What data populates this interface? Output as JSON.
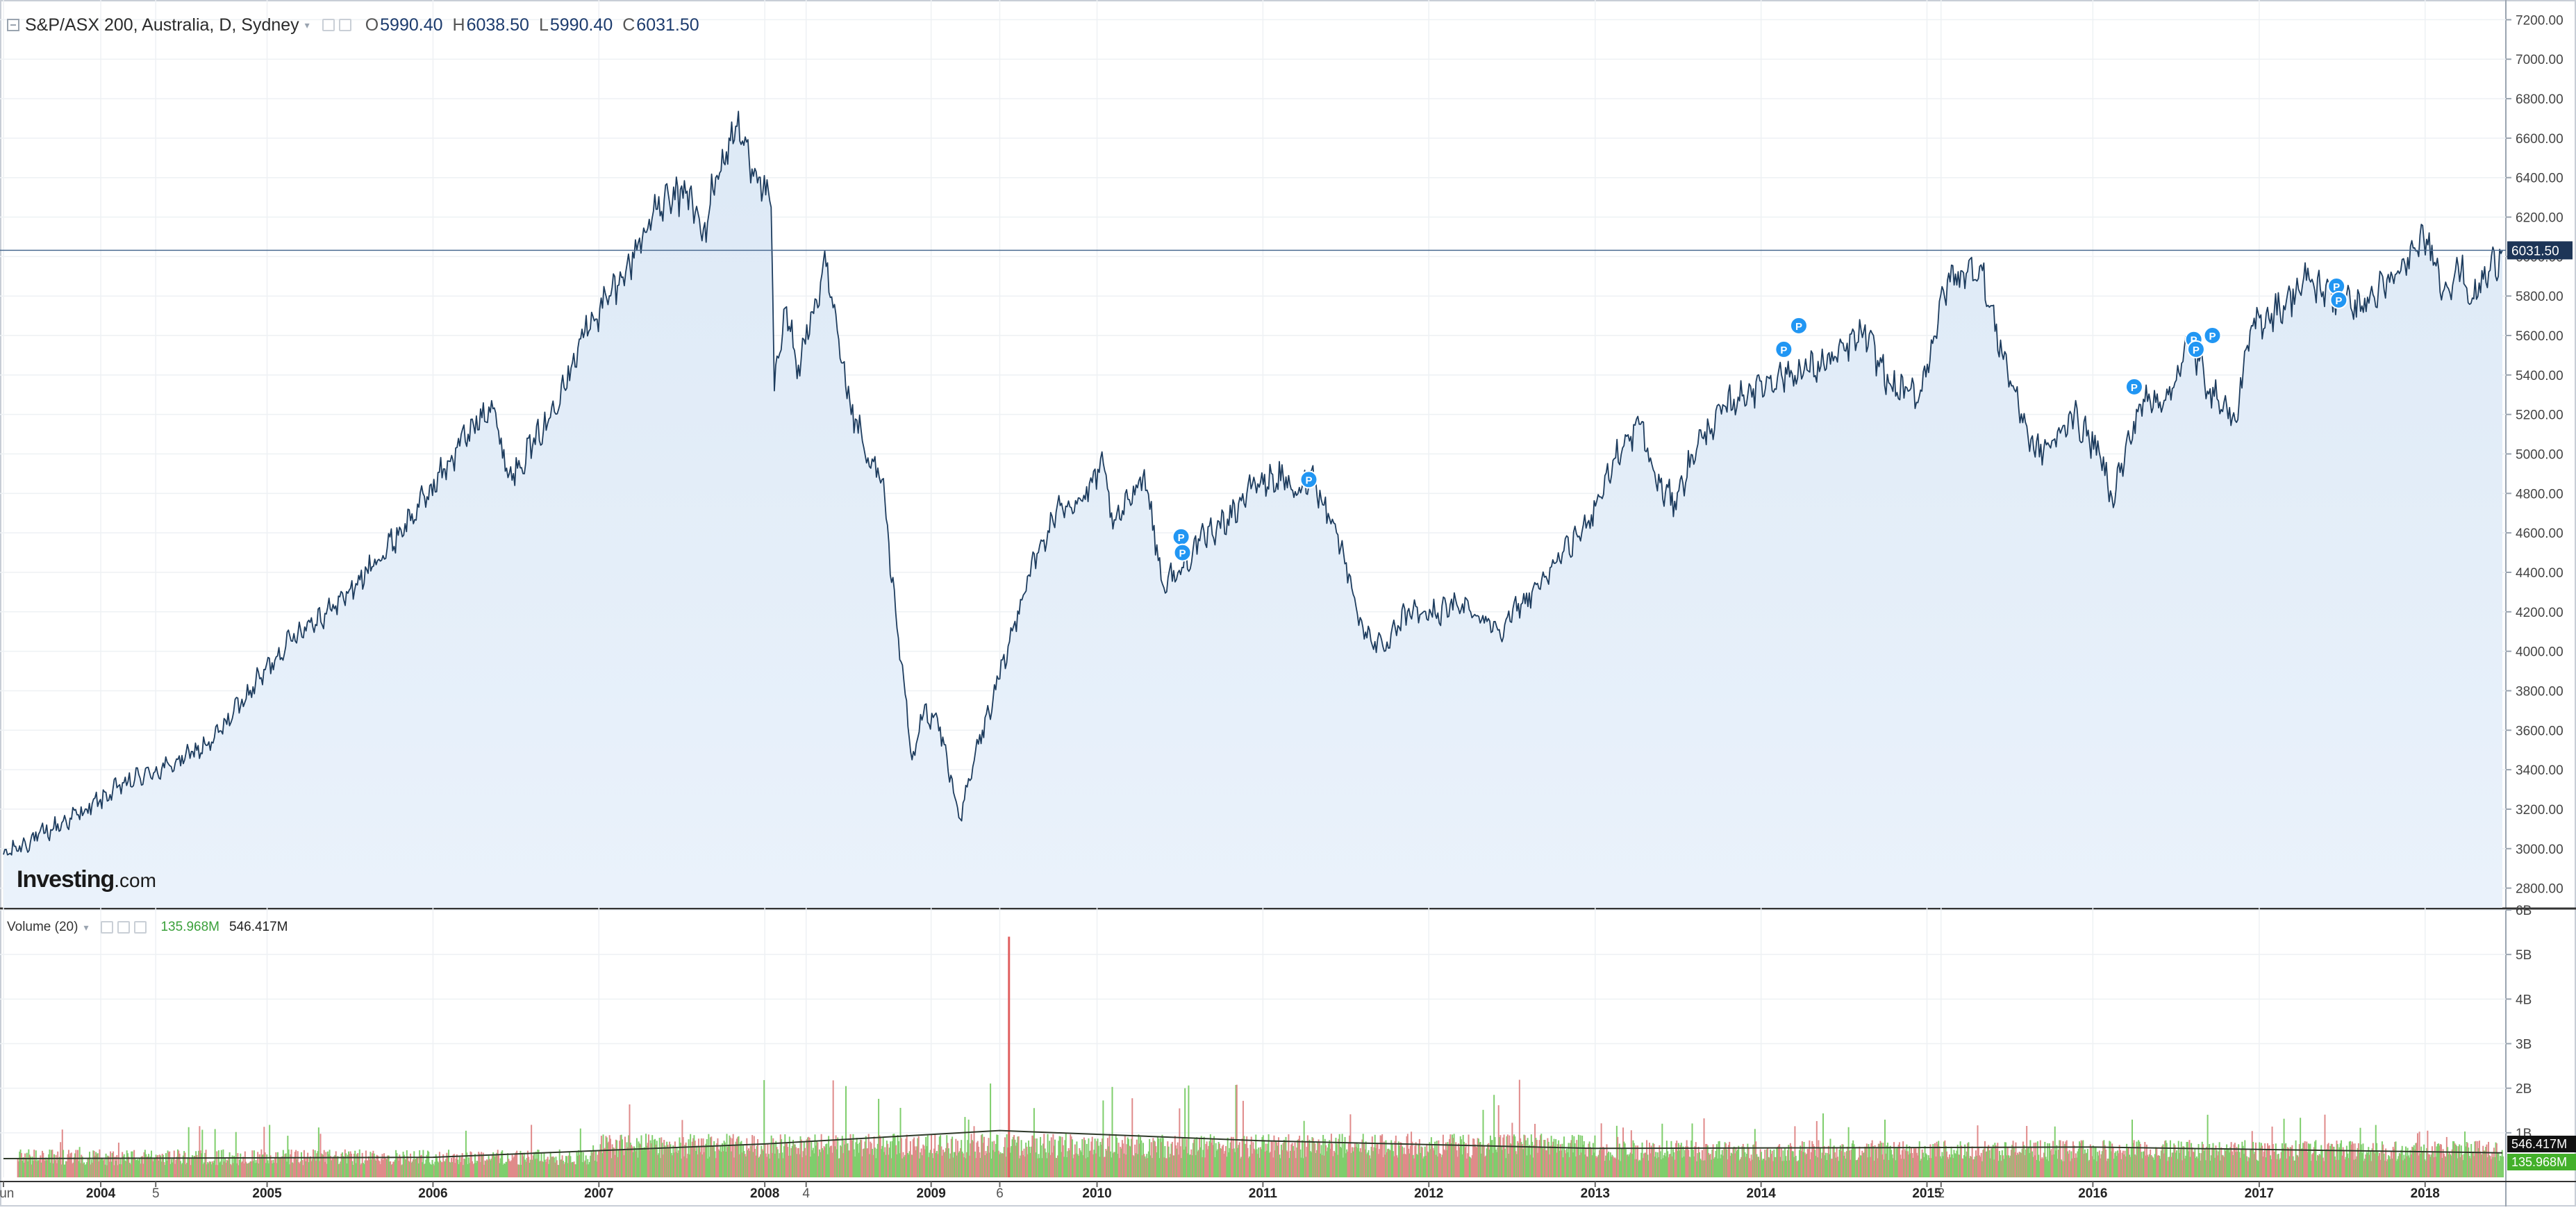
{
  "legend": {
    "symbol": "S&P/ASX 200, Australia, D, Sydney",
    "o_label": "O",
    "o_value": "5990.40",
    "h_label": "H",
    "h_value": "6038.50",
    "l_label": "L",
    "l_value": "5990.40",
    "c_label": "C",
    "c_value": "6031.50"
  },
  "volume_legend": {
    "name": "Volume (20)",
    "current_volume": "135.968M",
    "ma_value": "546.417M"
  },
  "logo": {
    "main": "Investing",
    "suffix": ".com"
  },
  "colors": {
    "line": "#1d3c5e",
    "area": "#dde9f6",
    "price_label_bg": "#1d3557",
    "vol_up": "#7fce6c",
    "vol_down": "#e08a8a",
    "vol_ma": "#2f3a2a",
    "marker": "#2196f3",
    "grid": "#eef1f4"
  },
  "chart_data": [
    {
      "type": "area",
      "title": "S&P/ASX 200, Australia, D, Sydney",
      "ylim": [
        2700,
        7300
      ],
      "yticks": [
        "7200.00",
        "7000.00",
        "6800.00",
        "6600.00",
        "6400.00",
        "6200.00",
        "6000.00",
        "5800.00",
        "5600.00",
        "5400.00",
        "5200.00",
        "5000.00",
        "4800.00",
        "4600.00",
        "4400.00",
        "4200.00",
        "4000.00",
        "3800.00",
        "3600.00",
        "3400.00",
        "3200.00",
        "3000.00",
        "2800.00"
      ],
      "x_range": [
        "2003-06-01",
        "2018-06-20"
      ],
      "xticks": [
        {
          "date": "2003-06-01",
          "label": "Jun"
        },
        {
          "date": "2004-01-01",
          "label": "2004"
        },
        {
          "date": "2004-05-01",
          "label": "5"
        },
        {
          "date": "2005-01-01",
          "label": "2005"
        },
        {
          "date": "2006-01-01",
          "label": "2006"
        },
        {
          "date": "2007-01-01",
          "label": "2007"
        },
        {
          "date": "2008-01-01",
          "label": "2008"
        },
        {
          "date": "2008-04-01",
          "label": "4"
        },
        {
          "date": "2009-01-01",
          "label": "2009"
        },
        {
          "date": "2009-06-01",
          "label": "6"
        },
        {
          "date": "2010-01-01",
          "label": "2010"
        },
        {
          "date": "2011-01-01",
          "label": "2011"
        },
        {
          "date": "2012-01-01",
          "label": "2012"
        },
        {
          "date": "2013-01-01",
          "label": "2013"
        },
        {
          "date": "2014-01-01",
          "label": "2014"
        },
        {
          "date": "2015-01-01",
          "label": "2015"
        },
        {
          "date": "2015-02-01",
          "label": "2"
        },
        {
          "date": "2016-01-01",
          "label": "2016"
        },
        {
          "date": "2017-01-01",
          "label": "2017"
        },
        {
          "date": "2018-01-01",
          "label": "2018"
        }
      ],
      "last_price": 6031.5,
      "last_price_label": "6031.50",
      "series": [
        {
          "x": [
            "2003-06-01",
            "2003-09-01",
            "2003-12-01",
            "2004-03-01",
            "2004-06-01",
            "2004-09-01",
            "2004-12-01",
            "2005-03-01",
            "2005-06-01",
            "2005-09-01",
            "2005-12-01",
            "2006-03-01",
            "2006-05-10",
            "2006-06-15",
            "2006-09-01",
            "2006-12-01",
            "2007-03-01",
            "2007-05-01",
            "2007-07-20",
            "2007-08-16",
            "2007-09-15",
            "2007-11-01",
            "2008-01-15",
            "2008-01-22",
            "2008-02-15",
            "2008-03-15",
            "2008-05-15",
            "2008-06-30",
            "2008-08-15",
            "2008-09-15",
            "2008-10-15",
            "2008-11-20",
            "2008-12-15",
            "2009-01-15",
            "2009-03-06",
            "2009-04-15",
            "2009-06-01",
            "2009-08-01",
            "2009-10-15",
            "2009-11-30",
            "2010-01-15",
            "2010-02-05",
            "2010-04-15",
            "2010-05-25",
            "2010-07-01",
            "2010-08-15",
            "2010-10-15",
            "2010-12-15",
            "2011-02-15",
            "2011-03-16",
            "2011-04-15",
            "2011-06-15",
            "2011-08-09",
            "2011-09-25",
            "2011-11-15",
            "2012-01-15",
            "2012-03-15",
            "2012-06-04",
            "2012-08-15",
            "2012-10-15",
            "2012-12-15",
            "2013-02-15",
            "2013-04-11",
            "2013-05-15",
            "2013-06-25",
            "2013-08-15",
            "2013-10-15",
            "2013-12-15",
            "2014-02-15",
            "2014-04-15",
            "2014-06-15",
            "2014-08-15",
            "2014-10-15",
            "2014-12-15",
            "2015-02-15",
            "2015-04-27",
            "2015-06-15",
            "2015-08-24",
            "2015-09-30",
            "2015-11-15",
            "2016-01-15",
            "2016-02-12",
            "2016-04-15",
            "2016-06-15",
            "2016-08-01",
            "2016-09-15",
            "2016-11-09",
            "2016-12-15",
            "2017-02-15",
            "2017-04-15",
            "2017-06-15",
            "2017-08-15",
            "2017-10-15",
            "2017-12-15",
            "2018-01-10",
            "2018-02-09",
            "2018-03-15",
            "2018-04-15",
            "2018-06-20"
          ],
          "y": [
            2970,
            3080,
            3200,
            3340,
            3420,
            3540,
            3820,
            4090,
            4230,
            4460,
            4730,
            5040,
            5270,
            4880,
            5120,
            5620,
            5920,
            6230,
            6340,
            6080,
            6400,
            6660,
            6250,
            5320,
            5740,
            5450,
            5950,
            5280,
            4980,
            4870,
            4200,
            3450,
            3680,
            3660,
            3150,
            3530,
            3860,
            4380,
            4750,
            4760,
            4950,
            4620,
            4920,
            4340,
            4410,
            4560,
            4670,
            4850,
            4880,
            4790,
            4910,
            4590,
            4120,
            4000,
            4200,
            4190,
            4240,
            4110,
            4300,
            4460,
            4650,
            4980,
            5150,
            4850,
            4760,
            5050,
            5240,
            5330,
            5400,
            5420,
            5490,
            5620,
            5340,
            5290,
            5880,
            5950,
            5510,
            5020,
            5030,
            5200,
            5010,
            4780,
            5250,
            5300,
            5560,
            5330,
            5170,
            5650,
            5740,
            5880,
            5800,
            5750,
            5870,
            6030,
            6120,
            5820,
            5950,
            5790,
            6031.5
          ],
          "name": "S&P/ASX 200"
        }
      ],
      "markers": [
        {
          "date": "2010-07-05",
          "value": 4580,
          "label": "P"
        },
        {
          "date": "2010-07-08",
          "value": 4500,
          "label": "P"
        },
        {
          "date": "2011-04-12",
          "value": 4870,
          "label": "P"
        },
        {
          "date": "2014-02-20",
          "value": 5530,
          "label": "P"
        },
        {
          "date": "2014-03-25",
          "value": 5650,
          "label": "P"
        },
        {
          "date": "2016-04-01",
          "value": 5340,
          "label": "P"
        },
        {
          "date": "2016-08-10",
          "value": 5580,
          "label": "P"
        },
        {
          "date": "2016-08-15",
          "value": 5530,
          "label": "P"
        },
        {
          "date": "2016-09-20",
          "value": 5600,
          "label": "P"
        },
        {
          "date": "2017-06-20",
          "value": 5850,
          "label": "P"
        },
        {
          "date": "2017-06-25",
          "value": 5780,
          "label": "P"
        }
      ],
      "grid": true
    },
    {
      "type": "bar",
      "title": "Volume (20)",
      "ylim": [
        0,
        6
      ],
      "yticks": [
        "6B",
        "5B",
        "4B",
        "3B",
        "2B",
        "1B"
      ],
      "current_volume_label": "135.968M",
      "ma_label": "546.417M",
      "spike": {
        "date": "2009-06-19",
        "value": 5.4
      },
      "typical_levels": [
        {
          "period": "2003-2006",
          "base": 0.45,
          "peak": 1.2
        },
        {
          "period": "2007-2012",
          "base": 0.7,
          "peak": 2.2
        },
        {
          "period": "2013-2018",
          "base": 0.6,
          "peak": 1.5
        }
      ],
      "ma_level": [
        {
          "x": "2003-06-01",
          "y": 0.42
        },
        {
          "x": "2006-01-01",
          "y": 0.45
        },
        {
          "x": "2008-01-01",
          "y": 0.75
        },
        {
          "x": "2009-06-01",
          "y": 1.05
        },
        {
          "x": "2011-01-01",
          "y": 0.82
        },
        {
          "x": "2013-01-01",
          "y": 0.65
        },
        {
          "x": "2016-01-01",
          "y": 0.68
        },
        {
          "x": "2018-06-20",
          "y": 0.55
        }
      ],
      "grid": true
    }
  ]
}
